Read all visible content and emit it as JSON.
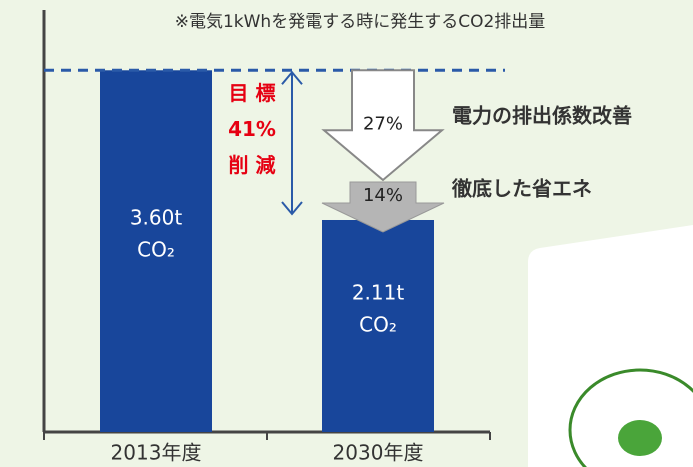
{
  "chart_data": {
    "type": "bar",
    "title": "※電気1kWhを発電する時に発生するCO2排出量",
    "categories": [
      "2013年度",
      "2030年度"
    ],
    "values": [
      3.6,
      2.11
    ],
    "value_labels": [
      [
        "3.60t",
        "CO₂"
      ],
      [
        "2.11t",
        "CO₂"
      ]
    ],
    "color": "#18469b",
    "ylim": [
      0,
      4.2
    ],
    "target_label": [
      "目 標",
      "41%",
      "削 減"
    ],
    "steps": [
      {
        "label": "27%",
        "text": "電力の排出係数改善"
      },
      {
        "label": "14%",
        "text": "徹底した省エネ"
      }
    ]
  }
}
